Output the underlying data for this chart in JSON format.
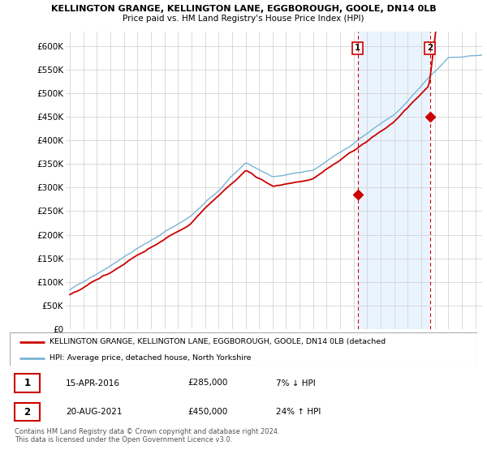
{
  "title1": "KELLINGTON GRANGE, KELLINGTON LANE, EGGBOROUGH, GOOLE, DN14 0LB",
  "title2": "Price paid vs. HM Land Registry's House Price Index (HPI)",
  "ylabel_ticks": [
    "£0",
    "£50K",
    "£100K",
    "£150K",
    "£200K",
    "£250K",
    "£300K",
    "£350K",
    "£400K",
    "£450K",
    "£500K",
    "£550K",
    "£600K"
  ],
  "ytick_values": [
    0,
    50000,
    100000,
    150000,
    200000,
    250000,
    300000,
    350000,
    400000,
    450000,
    500000,
    550000,
    600000
  ],
  "ylim": [
    0,
    630000
  ],
  "hpi_color": "#7ab3d4",
  "price_color": "#cc0000",
  "dashed_color": "#cc0000",
  "shade_color": "#ddeeff",
  "point1_year": 2016.29,
  "point1_price": 285000,
  "point1_label": "1",
  "point2_year": 2021.63,
  "point2_price": 450000,
  "point2_label": "2",
  "legend_line1": "KELLINGTON GRANGE, KELLINGTON LANE, EGGBOROUGH, GOOLE, DN14 0LB (detached",
  "legend_line2": "HPI: Average price, detached house, North Yorkshire",
  "table_row1_num": "1",
  "table_row1_date": "15-APR-2016",
  "table_row1_price": "£285,000",
  "table_row1_hpi": "7% ↓ HPI",
  "table_row2_num": "2",
  "table_row2_date": "20-AUG-2021",
  "table_row2_price": "£450,000",
  "table_row2_hpi": "24% ↑ HPI",
  "footer": "Contains HM Land Registry data © Crown copyright and database right 2024.\nThis data is licensed under the Open Government Licence v3.0.",
  "background_color": "#ffffff",
  "grid_color": "#cccccc"
}
